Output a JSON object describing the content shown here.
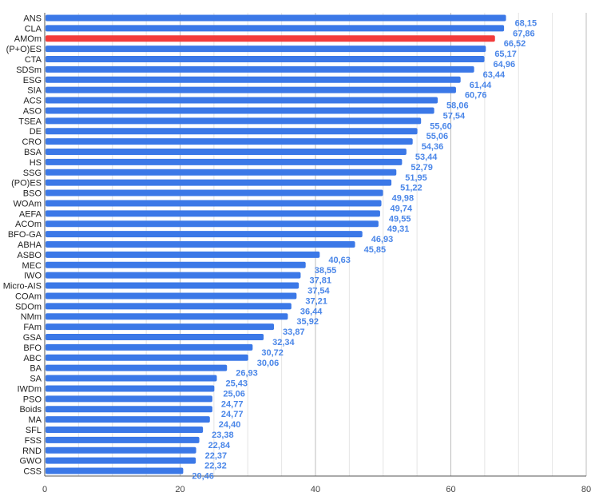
{
  "chart_data": {
    "type": "bar",
    "orientation": "horizontal",
    "categories": [
      "ANS",
      "CLA",
      "AMOm",
      "(P+O)ES",
      "CTA",
      "SDSm",
      "ESG",
      "SIA",
      "ACS",
      "ASO",
      "TSEA",
      "DE",
      "CRO",
      "BSA",
      "HS",
      "SSG",
      "(PO)ES",
      "BSO",
      "WOAm",
      "AEFA",
      "ACOm",
      "BFO-GA",
      "ABHA",
      "ASBO",
      "MEC",
      "IWO",
      "Micro-AIS",
      "COAm",
      "SDOm",
      "NMm",
      "FAm",
      "GSA",
      "BFO",
      "ABC",
      "BA",
      "SA",
      "IWDm",
      "PSO",
      "Boids",
      "MA",
      "SFL",
      "FSS",
      "RND",
      "GWO",
      "CSS"
    ],
    "values": [
      68.15,
      67.86,
      66.52,
      65.17,
      64.96,
      63.44,
      61.44,
      60.76,
      58.06,
      57.54,
      55.6,
      55.06,
      54.36,
      53.44,
      52.79,
      51.95,
      51.22,
      49.98,
      49.74,
      49.55,
      49.31,
      46.93,
      45.85,
      40.63,
      38.55,
      37.81,
      37.54,
      37.21,
      36.44,
      35.92,
      33.87,
      32.34,
      30.72,
      30.06,
      26.93,
      25.43,
      25.06,
      24.77,
      24.77,
      24.4,
      23.38,
      22.84,
      22.37,
      22.32,
      20.46
    ],
    "value_labels": [
      "68,15",
      "67,86",
      "66,52",
      "65,17",
      "64,96",
      "63,44",
      "61,44",
      "60,76",
      "58,06",
      "57,54",
      "55,60",
      "55,06",
      "54,36",
      "53,44",
      "52,79",
      "51,95",
      "51,22",
      "49,98",
      "49,74",
      "49,55",
      "49,31",
      "46,93",
      "45,85",
      "40,63",
      "38,55",
      "37,81",
      "37,54",
      "37,21",
      "36,44",
      "35,92",
      "33,87",
      "32,34",
      "30,72",
      "30,06",
      "26,93",
      "25,43",
      "25,06",
      "24,77",
      "24,77",
      "24,40",
      "23,38",
      "22,84",
      "22,37",
      "22,32",
      "20,46"
    ],
    "highlight_index": 2,
    "xlim": [
      0,
      80
    ],
    "xticks": [
      0,
      20,
      40,
      60,
      80
    ],
    "minor_gridlines": true,
    "grid": true,
    "title": "",
    "xlabel": "",
    "ylabel": "",
    "colors": {
      "bar": "#3b78e7",
      "highlight": "#f23b3b",
      "value_label": "#4a86e8",
      "grid_major": "#bdbdbd",
      "grid_minor": "#e4e4e4",
      "axis": "#555555"
    }
  }
}
